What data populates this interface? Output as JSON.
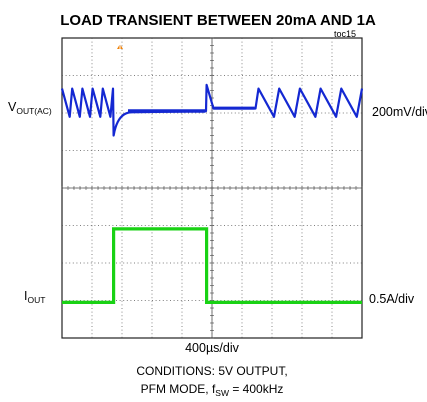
{
  "chart_data": {
    "type": "line",
    "title": "LOAD TRANSIENT BETWEEN 20mA AND 1A",
    "figure_id": "toc15",
    "xlabel": "400µs/div",
    "grid": true,
    "divisions": {
      "x": 10,
      "y": 8
    },
    "trigger_marker": "T",
    "channels": [
      {
        "name": "V",
        "name_sub": "OUT(AC)",
        "scale": "200mV/div",
        "color": "#1428d2",
        "notes": "PFM sawtooth ripple at light load; ~0.8 div undershoot on load step up, ~0.6 div overshoot on load step down",
        "x_div": [
          0,
          1.7,
          1.72,
          1.8,
          2.2,
          3.0,
          4.8,
          4.82,
          5.1,
          6.4,
          6.5,
          6.55,
          10
        ],
        "y_div": [
          0,
          0,
          -0.8,
          -0.5,
          -0.22,
          -0.15,
          -0.15,
          0.55,
          -0.1,
          -0.1,
          0.05,
          0,
          0
        ]
      },
      {
        "name": "I",
        "name_sub": "OUT",
        "scale": "0.5A/div",
        "color": "#19d214",
        "x_div": [
          0,
          1.72,
          1.72,
          4.82,
          4.82,
          10
        ],
        "current_A": [
          0.02,
          0.02,
          1.0,
          1.0,
          0.02,
          0.02
        ]
      }
    ],
    "conditions": {
      "line1": "CONDITIONS: 5V OUTPUT,",
      "line2_main": "PFM MODE, f",
      "line2_sub": "SW",
      "line2_tail": " = 400kHz"
    }
  }
}
